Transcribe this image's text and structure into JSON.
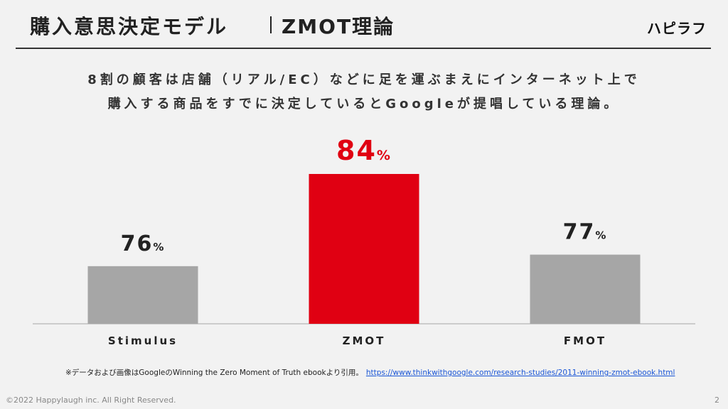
{
  "header": {
    "title": "購入意思決定モデル",
    "subtitle": "ZMOT理論",
    "brand": "ハピラフ"
  },
  "lead": {
    "line1": "8割の顧客は店舗（リアル/EC）などに足を運ぶまえにインターネット上で",
    "line2": "購入する商品をすでに決定しているとGoogleが提唱している理論。"
  },
  "chart_data": {
    "type": "bar",
    "categories": [
      "Stimulus",
      "ZMOT",
      "FMOT"
    ],
    "values": [
      76,
      84,
      77
    ],
    "value_suffix": "%",
    "highlight_index": 1,
    "colors": {
      "default": "#a6a6a6",
      "highlight": "#e00012",
      "label_default": "#222222",
      "label_highlight": "#e00012",
      "axis": "#bfbfbf"
    },
    "title": "",
    "xlabel": "",
    "ylabel": "",
    "grid": false,
    "legend": "none"
  },
  "footer": {
    "note": "※データおよび画像はGoogleのWinning the Zero Moment of Truth ebookより引用。",
    "link_text": "https://www.thinkwithgoogle.com/research-studies/2011-winning-zmot-ebook.html",
    "copyright": "©2022 Happylaugh inc. All Right Reserved.",
    "page_number": "2"
  }
}
